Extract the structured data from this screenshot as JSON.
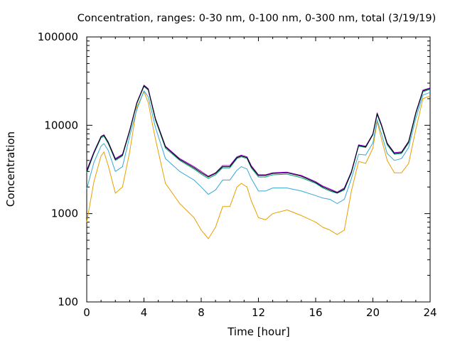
{
  "chart_data": {
    "type": "line",
    "title": "Concentration, ranges: 0-30 nm, 0-100 nm, 0-300 nm, total (3/19/19)",
    "xlabel": "Time [hour]",
    "ylabel": "Concentration",
    "xlim": [
      0,
      24
    ],
    "ylim": [
      100,
      100000
    ],
    "yscale": "log",
    "grid": false,
    "x_ticks": [
      0,
      4,
      8,
      12,
      16,
      20,
      24
    ],
    "x_tick_labels": [
      "0",
      "4",
      "8",
      "12",
      "16",
      "20",
      "24"
    ],
    "y_ticks": [
      100,
      1000,
      10000,
      100000
    ],
    "y_tick_labels": [
      "100",
      "1000",
      "10000",
      "100000"
    ],
    "x": [
      0,
      0.5,
      1,
      1.2,
      1.5,
      2,
      2.5,
      3,
      3.5,
      4,
      4.3,
      4.8,
      5.5,
      6.5,
      7.5,
      8,
      8.5,
      9,
      9.5,
      10,
      10.5,
      10.8,
      11.2,
      11.5,
      12,
      12.5,
      13,
      14,
      15,
      16,
      16.5,
      17,
      17.5,
      18,
      18.5,
      19,
      19.5,
      20,
      20.3,
      20.6,
      21,
      21.5,
      22,
      22.5,
      23,
      23.5,
      24
    ],
    "series": [
      {
        "color": "#e6a000",
        "values": [
          800,
          2300,
          4500,
          5000,
          3500,
          1700,
          2000,
          5000,
          16000,
          24000,
          18000,
          7000,
          2200,
          1300,
          900,
          650,
          520,
          700,
          1200,
          1200,
          2000,
          2200,
          2000,
          1400,
          900,
          850,
          1000,
          1100,
          950,
          800,
          700,
          650,
          580,
          650,
          1800,
          3900,
          3700,
          5500,
          11000,
          7000,
          4000,
          2900,
          2900,
          3700,
          9000,
          20000,
          21500
        ]
      },
      {
        "color": "#35a7d8",
        "values": [
          1900,
          3800,
          5800,
          6200,
          5200,
          3000,
          3400,
          7500,
          15000,
          24500,
          21000,
          9500,
          4200,
          3000,
          2400,
          2000,
          1650,
          1850,
          2400,
          2400,
          3100,
          3400,
          3200,
          2500,
          1800,
          1800,
          1950,
          1950,
          1800,
          1600,
          1500,
          1450,
          1300,
          1450,
          2500,
          4700,
          4600,
          6300,
          11500,
          8000,
          4800,
          4000,
          4200,
          5600,
          12000,
          22000,
          23500
        ]
      },
      {
        "color": "#009e73",
        "values": [
          2900,
          4800,
          7200,
          7500,
          6200,
          4000,
          4500,
          8500,
          17500,
          27500,
          25000,
          11500,
          5500,
          4000,
          3200,
          2800,
          2500,
          2750,
          3300,
          3300,
          4200,
          4400,
          4200,
          3300,
          2600,
          2600,
          2750,
          2800,
          2550,
          2200,
          1950,
          1800,
          1700,
          1850,
          2900,
          5800,
          5600,
          7800,
          13200,
          9800,
          6000,
          4700,
          4800,
          6300,
          13500,
          24000,
          25500
        ]
      },
      {
        "color": "#9400d3",
        "values": [
          3100,
          5000,
          7500,
          7800,
          6500,
          4200,
          4700,
          8800,
          18000,
          28500,
          26000,
          12000,
          5800,
          4200,
          3400,
          3000,
          2650,
          2900,
          3500,
          3500,
          4400,
          4600,
          4400,
          3500,
          2750,
          2750,
          2900,
          2950,
          2700,
          2300,
          2050,
          1900,
          1750,
          1950,
          3000,
          6000,
          5800,
          8000,
          13800,
          10200,
          6300,
          4900,
          5000,
          6600,
          14000,
          25000,
          26500
        ]
      },
      {
        "color": "#000000",
        "values": [
          3000,
          4900,
          7400,
          7700,
          6400,
          4100,
          4600,
          8700,
          17800,
          28000,
          25500,
          11800,
          5700,
          4100,
          3300,
          2900,
          2600,
          2850,
          3400,
          3400,
          4300,
          4500,
          4300,
          3400,
          2700,
          2700,
          2850,
          2900,
          2650,
          2250,
          2000,
          1850,
          1720,
          1900,
          2950,
          5900,
          5700,
          7900,
          13500,
          10000,
          6200,
          4800,
          4900,
          6500,
          13800,
          24500,
          26000
        ]
      }
    ]
  }
}
